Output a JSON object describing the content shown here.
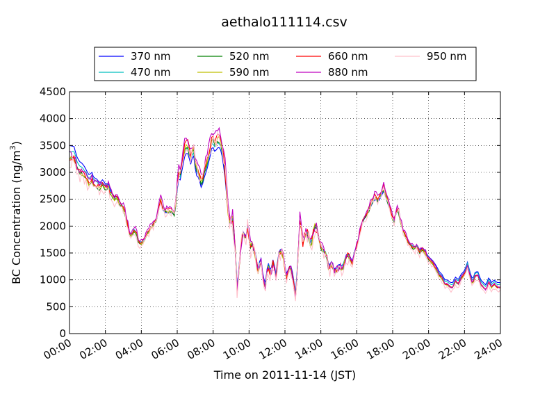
{
  "chart_data": {
    "type": "line",
    "title": "aethalo111114.csv",
    "xlabel": "Time on 2011-11-14 (JST)",
    "ylabel": "BC Concentration (ng/m³)",
    "ylabel_base": "BC Concentration (ng/m",
    "ylabel_sup": "3",
    "ylabel_tail": ")",
    "xlim": [
      "00:00",
      "24:00"
    ],
    "ylim": [
      0,
      4500
    ],
    "x_ticks": [
      "00:00",
      "02:00",
      "04:00",
      "06:00",
      "08:00",
      "10:00",
      "12:00",
      "14:00",
      "16:00",
      "18:00",
      "20:00",
      "22:00",
      "24:00"
    ],
    "y_ticks": [
      0,
      500,
      1000,
      1500,
      2000,
      2500,
      3000,
      3500,
      4000,
      4500
    ],
    "grid": true,
    "legend_position": "top",
    "reference_series": "370 nm",
    "reference_points": [
      [
        0.0,
        3500
      ],
      [
        0.25,
        3480
      ],
      [
        0.4,
        3300
      ],
      [
        0.55,
        3200
      ],
      [
        0.7,
        3170
      ],
      [
        0.85,
        3100
      ],
      [
        1.0,
        3000
      ],
      [
        1.1,
        2950
      ],
      [
        1.25,
        3000
      ],
      [
        1.35,
        2900
      ],
      [
        1.5,
        2880
      ],
      [
        1.7,
        2800
      ],
      [
        1.85,
        2870
      ],
      [
        2.0,
        2780
      ],
      [
        2.15,
        2800
      ],
      [
        2.3,
        2650
      ],
      [
        2.5,
        2550
      ],
      [
        2.65,
        2560
      ],
      [
        2.8,
        2450
      ],
      [
        2.95,
        2380
      ],
      [
        3.05,
        2300
      ],
      [
        3.2,
        2100
      ],
      [
        3.35,
        1880
      ],
      [
        3.45,
        1820
      ],
      [
        3.6,
        1950
      ],
      [
        3.75,
        1850
      ],
      [
        3.85,
        1720
      ],
      [
        4.0,
        1700
      ],
      [
        4.15,
        1750
      ],
      [
        4.3,
        1850
      ],
      [
        4.5,
        1950
      ],
      [
        4.7,
        2050
      ],
      [
        4.85,
        2100
      ],
      [
        5.0,
        2350
      ],
      [
        5.05,
        2500
      ],
      [
        5.15,
        2350
      ],
      [
        5.3,
        2250
      ],
      [
        5.5,
        2250
      ],
      [
        5.7,
        2250
      ],
      [
        5.85,
        2200
      ],
      [
        5.95,
        2450
      ],
      [
        6.05,
        2900
      ],
      [
        6.15,
        2830
      ],
      [
        6.3,
        3100
      ],
      [
        6.45,
        3350
      ],
      [
        6.6,
        3350
      ],
      [
        6.75,
        3150
      ],
      [
        6.9,
        3350
      ],
      [
        7.05,
        2950
      ],
      [
        7.2,
        2900
      ],
      [
        7.35,
        2700
      ],
      [
        7.5,
        2900
      ],
      [
        7.65,
        3050
      ],
      [
        7.8,
        3250
      ],
      [
        7.95,
        3500
      ],
      [
        8.1,
        3380
      ],
      [
        8.3,
        3480
      ],
      [
        8.45,
        3400
      ],
      [
        8.55,
        3200
      ],
      [
        8.7,
        2800
      ],
      [
        8.8,
        2350
      ],
      [
        8.9,
        2050
      ],
      [
        9.0,
        2100
      ],
      [
        9.1,
        2150
      ],
      [
        9.25,
        1500
      ],
      [
        9.35,
        750
      ],
      [
        9.45,
        1350
      ],
      [
        9.6,
        1800
      ],
      [
        9.7,
        1950
      ],
      [
        9.8,
        1750
      ],
      [
        9.95,
        2050
      ],
      [
        10.05,
        1600
      ],
      [
        10.2,
        1700
      ],
      [
        10.35,
        1500
      ],
      [
        10.5,
        1200
      ],
      [
        10.65,
        1450
      ],
      [
        10.75,
        1150
      ],
      [
        10.9,
        900
      ],
      [
        11.05,
        1350
      ],
      [
        11.2,
        1150
      ],
      [
        11.35,
        1400
      ],
      [
        11.5,
        1100
      ],
      [
        11.65,
        1500
      ],
      [
        11.8,
        1600
      ],
      [
        11.95,
        1400
      ],
      [
        12.05,
        1100
      ],
      [
        12.2,
        1200
      ],
      [
        12.3,
        1300
      ],
      [
        12.45,
        1100
      ],
      [
        12.6,
        700
      ],
      [
        12.75,
        1600
      ],
      [
        12.85,
        2150
      ],
      [
        13.0,
        1700
      ],
      [
        13.15,
        1900
      ],
      [
        13.3,
        1850
      ],
      [
        13.45,
        1650
      ],
      [
        13.6,
        1950
      ],
      [
        13.7,
        2000
      ],
      [
        13.85,
        1850
      ],
      [
        14.0,
        1650
      ],
      [
        14.15,
        1550
      ],
      [
        14.3,
        1500
      ],
      [
        14.45,
        1250
      ],
      [
        14.6,
        1350
      ],
      [
        14.75,
        1200
      ],
      [
        14.9,
        1250
      ],
      [
        15.05,
        1300
      ],
      [
        15.2,
        1250
      ],
      [
        15.35,
        1400
      ],
      [
        15.45,
        1500
      ],
      [
        15.6,
        1450
      ],
      [
        15.75,
        1350
      ],
      [
        15.9,
        1550
      ],
      [
        16.05,
        1700
      ],
      [
        16.2,
        1950
      ],
      [
        16.35,
        2100
      ],
      [
        16.55,
        2200
      ],
      [
        16.7,
        2300
      ],
      [
        16.9,
        2450
      ],
      [
        17.05,
        2500
      ],
      [
        17.2,
        2450
      ],
      [
        17.35,
        2550
      ],
      [
        17.5,
        2650
      ],
      [
        17.65,
        2500
      ],
      [
        17.8,
        2350
      ],
      [
        17.95,
        2200
      ],
      [
        18.05,
        2050
      ],
      [
        18.2,
        2250
      ],
      [
        18.3,
        2300
      ],
      [
        18.45,
        2050
      ],
      [
        18.6,
        1900
      ],
      [
        18.75,
        1800
      ],
      [
        18.9,
        1700
      ],
      [
        19.05,
        1650
      ],
      [
        19.2,
        1600
      ],
      [
        19.35,
        1650
      ],
      [
        19.5,
        1550
      ],
      [
        19.65,
        1600
      ],
      [
        19.8,
        1550
      ],
      [
        19.95,
        1450
      ],
      [
        20.1,
        1400
      ],
      [
        20.25,
        1350
      ],
      [
        20.45,
        1250
      ],
      [
        20.6,
        1150
      ],
      [
        20.75,
        1100
      ],
      [
        20.9,
        1000
      ],
      [
        21.05,
        1000
      ],
      [
        21.2,
        950
      ],
      [
        21.35,
        950
      ],
      [
        21.5,
        1050
      ],
      [
        21.65,
        1000
      ],
      [
        21.8,
        1100
      ],
      [
        21.95,
        1150
      ],
      [
        22.05,
        1200
      ],
      [
        22.15,
        1350
      ],
      [
        22.3,
        1150
      ],
      [
        22.45,
        1000
      ],
      [
        22.6,
        1150
      ],
      [
        22.75,
        1150
      ],
      [
        22.9,
        1000
      ],
      [
        23.05,
        950
      ],
      [
        23.2,
        900
      ],
      [
        23.35,
        1050
      ],
      [
        23.5,
        950
      ],
      [
        23.65,
        1000
      ],
      [
        23.8,
        950
      ],
      [
        23.95,
        950
      ]
    ],
    "series": [
      {
        "name": "370 nm",
        "color": "#0000ff",
        "amp": 0.0,
        "offset": 0,
        "noise": 0.0,
        "early": 380
      },
      {
        "name": "470 nm",
        "color": "#00bfbf",
        "amp": 0.04,
        "offset": 0,
        "noise": 0.02,
        "early": 220
      },
      {
        "name": "520 nm",
        "color": "#008000",
        "amp": 0.07,
        "offset": -30,
        "noise": 0.03,
        "early": 80
      },
      {
        "name": "590 nm",
        "color": "#bfbf00",
        "amp": 0.09,
        "offset": -20,
        "noise": 0.04,
        "early": 40
      },
      {
        "name": "660 nm",
        "color": "#ff0000",
        "amp": 0.1,
        "offset": 0,
        "noise": 0.05,
        "early": 20
      },
      {
        "name": "880 nm",
        "color": "#bf00bf",
        "amp": 0.13,
        "offset": 30,
        "noise": 0.07,
        "early": 0
      },
      {
        "name": "950 nm",
        "color": "#ffc0cb",
        "amp": 0.11,
        "offset": -60,
        "noise": 0.1,
        "early": -30
      }
    ]
  }
}
